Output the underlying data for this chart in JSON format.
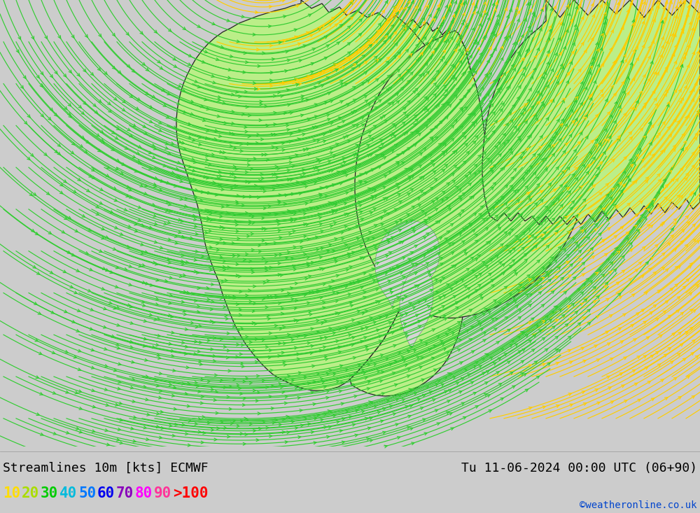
{
  "title_left": "Streamlines 10m [kts] ECMWF",
  "title_right": "Tu 11-06-2024 00:00 UTC (06+90)",
  "legend_values": [
    "10",
    "20",
    "30",
    "40",
    "50",
    "60",
    "70",
    "80",
    "90",
    ">100"
  ],
  "legend_colors": [
    "#ffdd00",
    "#aadd00",
    "#00cc00",
    "#00bbdd",
    "#0077ff",
    "#0000ee",
    "#8800bb",
    "#ff00ff",
    "#ff3399",
    "#ff0000"
  ],
  "watermark": "©weatheronline.co.uk",
  "sea_color": "#d4d4d4",
  "land_color": "#bbee88",
  "lake_color": "#d4d4d4",
  "border_color": "#222222",
  "green_color": "#33cc33",
  "yellow_color": "#ffcc00",
  "bottom_bg": "#eeeeee",
  "title_fontsize": 13,
  "legend_fontsize": 15,
  "watermark_fontsize": 10,
  "fig_width": 10.0,
  "fig_height": 7.33,
  "dpi": 100
}
